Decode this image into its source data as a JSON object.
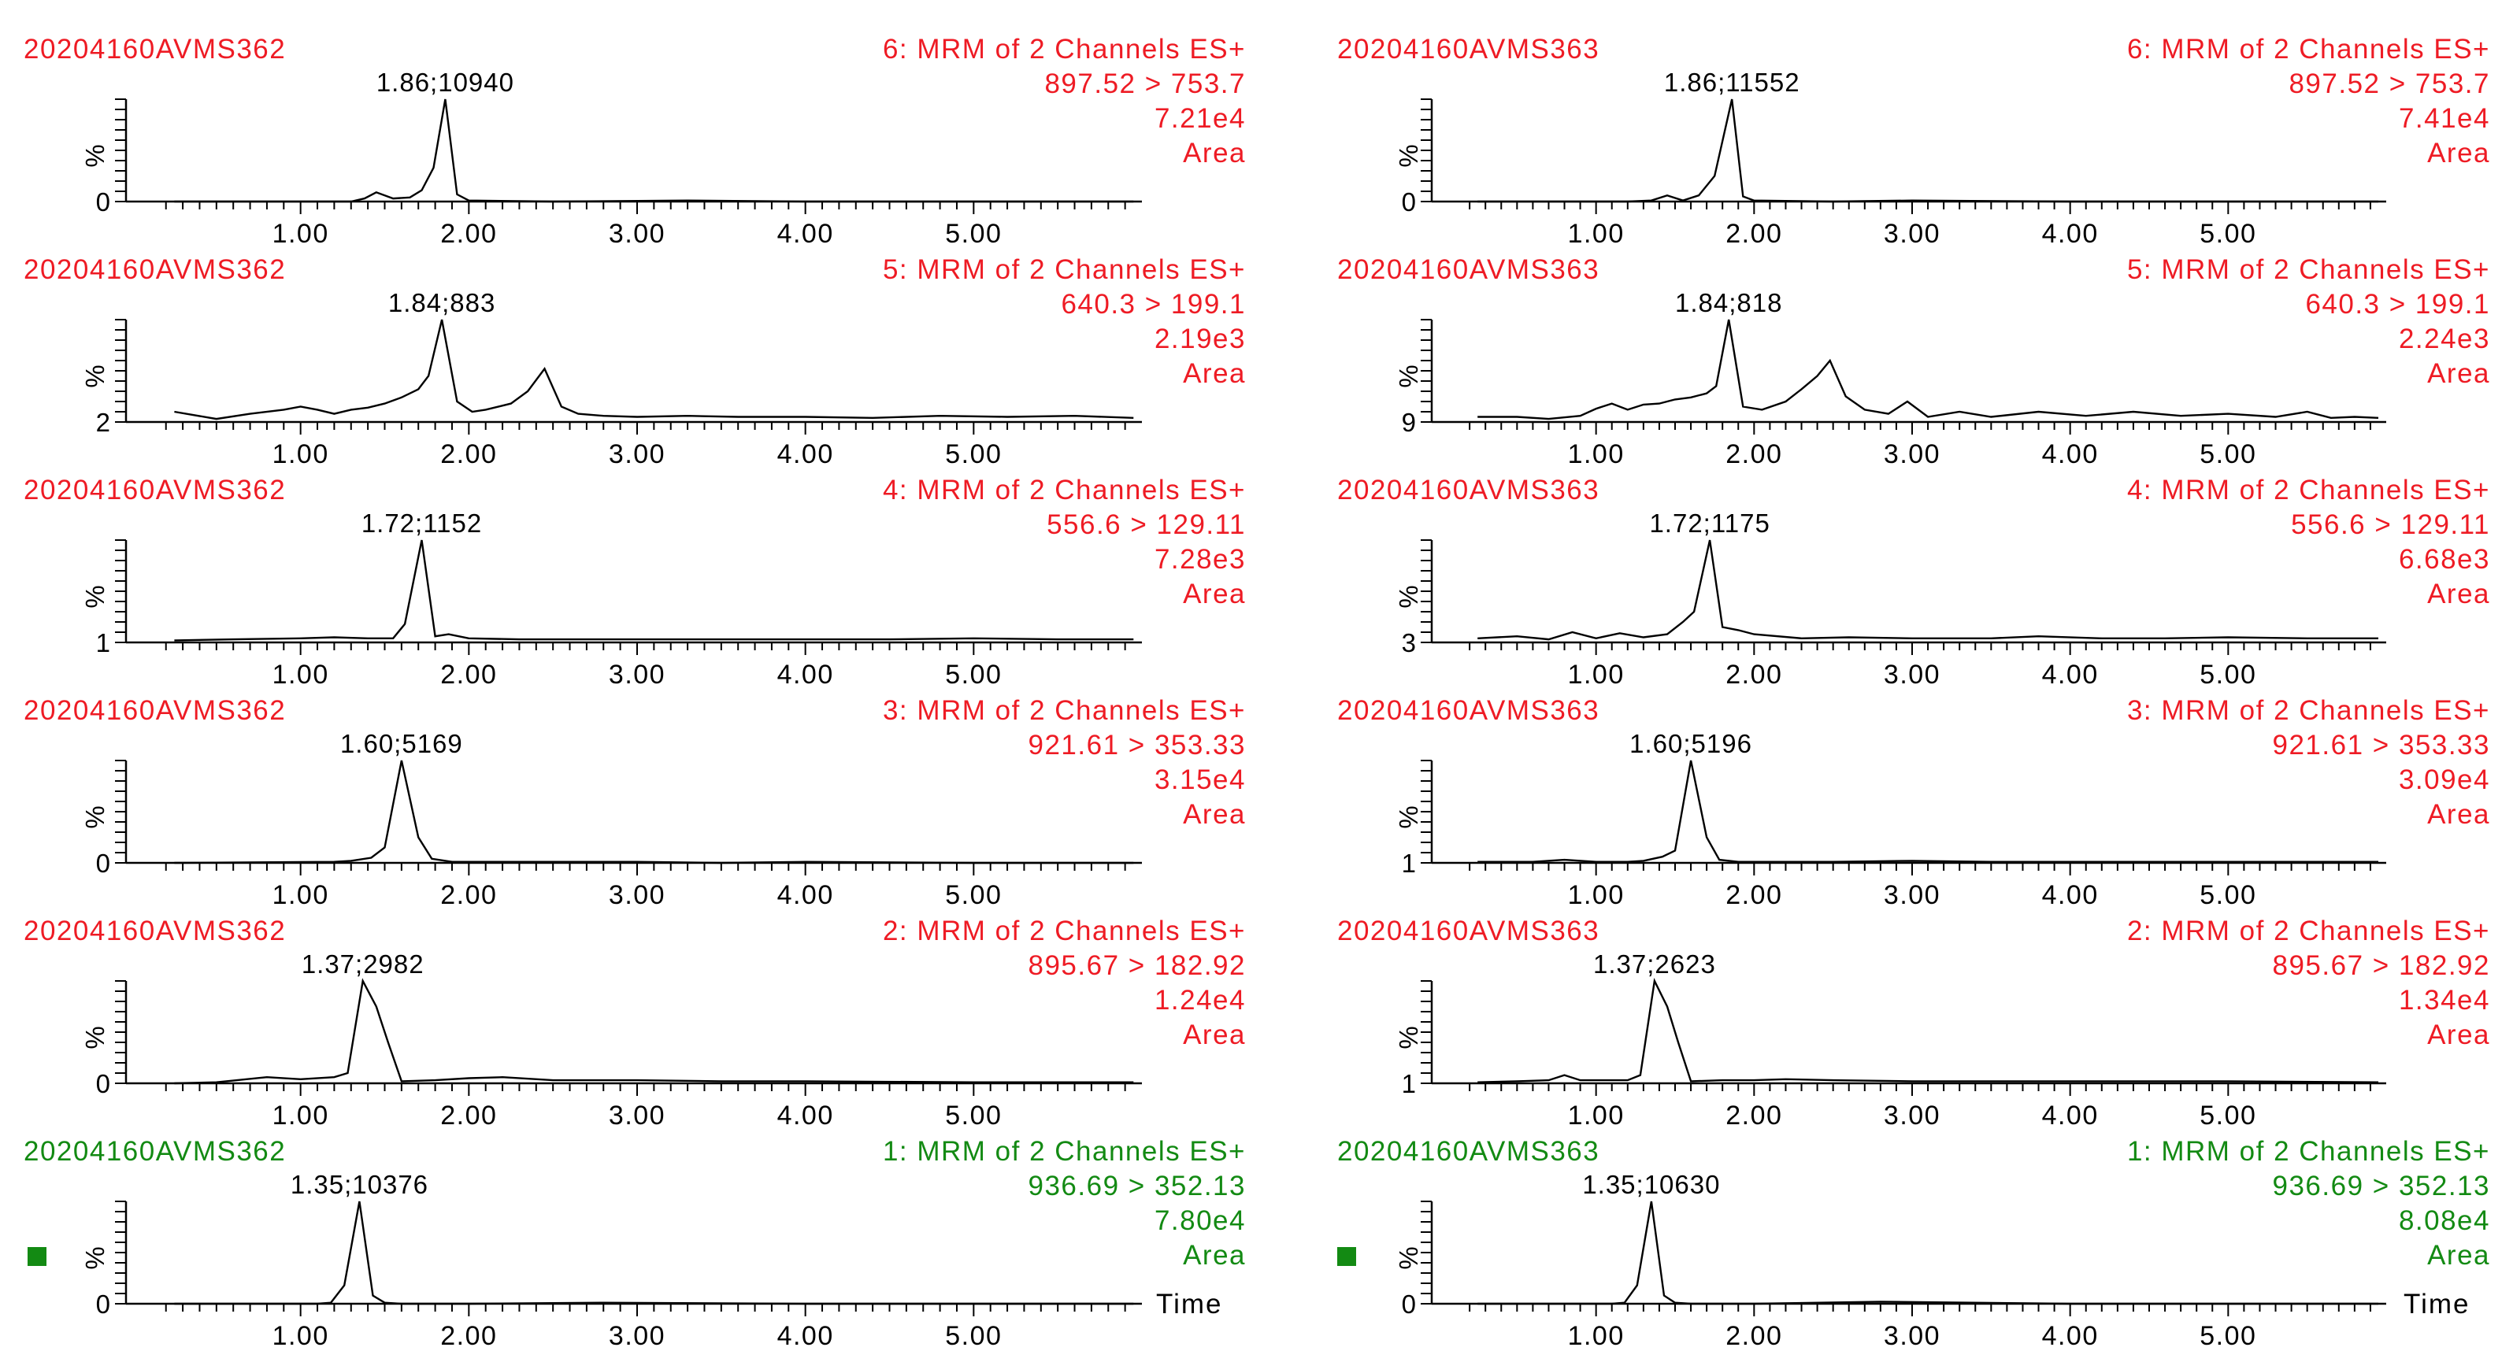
{
  "time_label": "Time",
  "pct_label": "%",
  "colors": {
    "red": "#ee1b24",
    "green": "#138a13",
    "text": "#000000",
    "trace": "#000000"
  },
  "chart_data": [
    {
      "type": "line",
      "column": "left",
      "sample": "20204160AVMS362",
      "function": "6: MRM of 2 Channels ES+",
      "transition": "897.52 > 753.7",
      "scale": "7.21e4",
      "mode": "Area",
      "peak_label": "1.86;10940",
      "offset": "0",
      "color": "red",
      "xlim": [
        0.0,
        6.0
      ],
      "xticks": [
        "1.00",
        "2.00",
        "3.00",
        "4.00",
        "5.00"
      ],
      "ylim": [
        0,
        100
      ],
      "x": [
        0.25,
        1.2,
        1.3,
        1.38,
        1.45,
        1.55,
        1.65,
        1.72,
        1.79,
        1.86,
        1.93,
        2.0,
        2.5,
        3.3,
        4.0,
        5.0,
        5.95
      ],
      "y": [
        0,
        0,
        0,
        3,
        9,
        3,
        4,
        11,
        33,
        100,
        7,
        1,
        0,
        1,
        0,
        0,
        0
      ]
    },
    {
      "type": "line",
      "column": "left",
      "sample": "20204160AVMS362",
      "function": "5: MRM of 2 Channels ES+",
      "transition": "640.3 > 199.1",
      "scale": "2.19e3",
      "mode": "Area",
      "peak_label": "1.84;883",
      "offset": "2",
      "color": "red",
      "xlim": [
        0.0,
        6.0
      ],
      "xticks": [
        "1.00",
        "2.00",
        "3.00",
        "4.00",
        "5.00"
      ],
      "ylim": [
        0,
        100
      ],
      "x": [
        0.25,
        0.5,
        0.7,
        0.9,
        1.0,
        1.1,
        1.2,
        1.3,
        1.4,
        1.5,
        1.6,
        1.7,
        1.76,
        1.84,
        1.93,
        2.02,
        2.1,
        2.25,
        2.35,
        2.45,
        2.55,
        2.65,
        2.8,
        3.0,
        3.3,
        3.6,
        4.0,
        4.4,
        4.8,
        5.2,
        5.6,
        5.95
      ],
      "y": [
        10,
        3,
        8,
        12,
        15,
        12,
        8,
        12,
        14,
        18,
        24,
        32,
        45,
        100,
        20,
        10,
        12,
        18,
        30,
        52,
        15,
        8,
        6,
        5,
        6,
        5,
        5,
        4,
        6,
        5,
        6,
        4
      ]
    },
    {
      "type": "line",
      "column": "left",
      "sample": "20204160AVMS362",
      "function": "4: MRM of 2 Channels ES+",
      "transition": "556.6 > 129.11",
      "scale": "7.28e3",
      "mode": "Area",
      "peak_label": "1.72;1152",
      "offset": "1",
      "color": "red",
      "xlim": [
        0.0,
        6.0
      ],
      "xticks": [
        "1.00",
        "2.00",
        "3.00",
        "4.00",
        "5.00"
      ],
      "ylim": [
        0,
        100
      ],
      "x": [
        0.25,
        0.6,
        1.0,
        1.2,
        1.4,
        1.55,
        1.62,
        1.72,
        1.8,
        1.88,
        2.0,
        2.3,
        3.0,
        3.5,
        4.0,
        4.5,
        5.0,
        5.5,
        5.95
      ],
      "y": [
        2,
        3,
        4,
        5,
        4,
        4,
        18,
        100,
        6,
        8,
        4,
        3,
        3,
        3,
        3,
        3,
        4,
        3,
        3
      ]
    },
    {
      "type": "line",
      "column": "left",
      "sample": "20204160AVMS362",
      "function": "3: MRM of 2 Channels ES+",
      "transition": "921.61 > 353.33",
      "scale": "3.15e4",
      "mode": "Area",
      "peak_label": "1.60;5169",
      "offset": "0",
      "color": "red",
      "xlim": [
        0.0,
        6.0
      ],
      "xticks": [
        "1.00",
        "2.00",
        "3.00",
        "4.00",
        "5.00"
      ],
      "ylim": [
        0,
        100
      ],
      "x": [
        0.25,
        1.2,
        1.3,
        1.42,
        1.5,
        1.6,
        1.7,
        1.78,
        1.9,
        2.5,
        3.0,
        3.5,
        4.0,
        5.0,
        5.95
      ],
      "y": [
        0,
        1,
        2,
        5,
        15,
        100,
        25,
        4,
        1,
        1,
        1,
        0,
        1,
        0,
        0
      ]
    },
    {
      "type": "line",
      "column": "left",
      "sample": "20204160AVMS362",
      "function": "2: MRM of 2 Channels ES+",
      "transition": "895.67 > 182.92",
      "scale": "1.24e4",
      "mode": "Area",
      "peak_label": "1.37;2982",
      "offset": "0",
      "color": "red",
      "xlim": [
        0.0,
        6.0
      ],
      "xticks": [
        "1.00",
        "2.00",
        "3.00",
        "4.00",
        "5.00"
      ],
      "ylim": [
        0,
        100
      ],
      "x": [
        0.25,
        0.5,
        0.8,
        1.0,
        1.2,
        1.28,
        1.37,
        1.45,
        1.52,
        1.6,
        1.8,
        2.0,
        2.2,
        2.5,
        3.0,
        3.5,
        4.0,
        5.0,
        5.95
      ],
      "y": [
        0,
        1,
        6,
        4,
        6,
        10,
        100,
        75,
        40,
        2,
        3,
        5,
        6,
        3,
        3,
        2,
        2,
        1,
        1
      ]
    },
    {
      "type": "line",
      "column": "left",
      "sample": "20204160AVMS362",
      "function": "1: MRM of 2 Channels ES+",
      "transition": "936.69 > 352.13",
      "scale": "7.80e4",
      "mode": "Area",
      "peak_label": "1.35;10376",
      "offset": "0",
      "color": "green",
      "xlim": [
        0.0,
        6.0
      ],
      "xticks": [
        "1.00",
        "2.00",
        "3.00",
        "4.00",
        "5.00"
      ],
      "ylim": [
        0,
        100
      ],
      "x": [
        0.25,
        1.1,
        1.18,
        1.26,
        1.35,
        1.43,
        1.5,
        1.6,
        2.0,
        2.8,
        4.0,
        5.95
      ],
      "y": [
        0,
        0,
        1,
        18,
        100,
        8,
        1,
        0,
        0,
        1,
        0,
        0
      ]
    },
    {
      "type": "line",
      "column": "right",
      "sample": "20204160AVMS363",
      "function": "6: MRM of 2 Channels ES+",
      "transition": "897.52 > 753.7",
      "scale": "7.41e4",
      "mode": "Area",
      "peak_label": "1.86;11552",
      "offset": "0",
      "color": "red",
      "xlim": [
        0.0,
        6.0
      ],
      "xticks": [
        "1.00",
        "2.00",
        "3.00",
        "4.00",
        "5.00"
      ],
      "ylim": [
        0,
        100
      ],
      "x": [
        0.25,
        1.2,
        1.35,
        1.45,
        1.55,
        1.65,
        1.75,
        1.86,
        1.93,
        2.0,
        2.5,
        3.0,
        4.0,
        5.0,
        5.95
      ],
      "y": [
        0,
        0,
        1,
        6,
        1,
        6,
        25,
        100,
        5,
        1,
        0,
        1,
        0,
        0,
        0
      ]
    },
    {
      "type": "line",
      "column": "right",
      "sample": "20204160AVMS363",
      "function": "5: MRM of 2 Channels ES+",
      "transition": "640.3 > 199.1",
      "scale": "2.24e3",
      "mode": "Area",
      "peak_label": "1.84;818",
      "offset": "9",
      "color": "red",
      "xlim": [
        0.0,
        6.0
      ],
      "xticks": [
        "1.00",
        "2.00",
        "3.00",
        "4.00",
        "5.00"
      ],
      "ylim": [
        0,
        100
      ],
      "x": [
        0.25,
        0.5,
        0.7,
        0.9,
        1.0,
        1.1,
        1.2,
        1.3,
        1.4,
        1.5,
        1.6,
        1.7,
        1.76,
        1.84,
        1.93,
        2.05,
        2.2,
        2.3,
        2.4,
        2.48,
        2.58,
        2.7,
        2.85,
        2.97,
        3.1,
        3.3,
        3.5,
        3.8,
        4.1,
        4.4,
        4.7,
        5.0,
        5.3,
        5.5,
        5.65,
        5.8,
        5.95
      ],
      "y": [
        5,
        5,
        3,
        6,
        13,
        18,
        12,
        17,
        18,
        22,
        24,
        28,
        35,
        100,
        15,
        12,
        20,
        32,
        45,
        60,
        25,
        12,
        8,
        20,
        5,
        10,
        5,
        10,
        6,
        10,
        6,
        8,
        5,
        10,
        4,
        5,
        4
      ]
    },
    {
      "type": "line",
      "column": "right",
      "sample": "20204160AVMS363",
      "function": "4: MRM of 2 Channels ES+",
      "transition": "556.6 > 129.11",
      "scale": "6.68e3",
      "mode": "Area",
      "peak_label": "1.72;1175",
      "offset": "3",
      "color": "red",
      "xlim": [
        0.0,
        6.0
      ],
      "xticks": [
        "1.00",
        "2.00",
        "3.00",
        "4.00",
        "5.00"
      ],
      "ylim": [
        0,
        100
      ],
      "x": [
        0.25,
        0.5,
        0.7,
        0.85,
        1.0,
        1.15,
        1.3,
        1.45,
        1.55,
        1.62,
        1.72,
        1.8,
        1.9,
        2.0,
        2.3,
        2.6,
        3.0,
        3.5,
        3.8,
        4.2,
        4.6,
        5.0,
        5.5,
        5.95
      ],
      "y": [
        4,
        6,
        3,
        10,
        4,
        9,
        5,
        8,
        20,
        30,
        100,
        15,
        12,
        8,
        4,
        5,
        4,
        4,
        6,
        4,
        4,
        5,
        4,
        4
      ]
    },
    {
      "type": "line",
      "column": "right",
      "sample": "20204160AVMS363",
      "function": "3: MRM of 2 Channels ES+",
      "transition": "921.61 > 353.33",
      "scale": "3.09e4",
      "mode": "Area",
      "peak_label": "1.60;5196",
      "offset": "1",
      "color": "red",
      "xlim": [
        0.0,
        6.0
      ],
      "xticks": [
        "1.00",
        "2.00",
        "3.00",
        "4.00",
        "5.00"
      ],
      "ylim": [
        0,
        100
      ],
      "x": [
        0.25,
        0.6,
        0.8,
        1.0,
        1.2,
        1.3,
        1.42,
        1.5,
        1.6,
        1.7,
        1.78,
        1.9,
        2.5,
        3.0,
        3.5,
        4.0,
        5.0,
        5.95
      ],
      "y": [
        1,
        1,
        3,
        1,
        1,
        2,
        6,
        12,
        100,
        25,
        3,
        1,
        1,
        2,
        1,
        1,
        1,
        1
      ]
    },
    {
      "type": "line",
      "column": "right",
      "sample": "20204160AVMS363",
      "function": "2: MRM of 2 Channels ES+",
      "transition": "895.67 > 182.92",
      "scale": "1.34e4",
      "mode": "Area",
      "peak_label": "1.37;2623",
      "offset": "1",
      "color": "red",
      "xlim": [
        0.0,
        6.0
      ],
      "xticks": [
        "1.00",
        "2.00",
        "3.00",
        "4.00",
        "5.00"
      ],
      "ylim": [
        0,
        100
      ],
      "x": [
        0.25,
        0.5,
        0.7,
        0.8,
        0.9,
        1.0,
        1.2,
        1.28,
        1.37,
        1.45,
        1.52,
        1.6,
        1.8,
        2.0,
        2.2,
        2.5,
        3.0,
        4.0,
        5.0,
        5.95
      ],
      "y": [
        1,
        2,
        3,
        8,
        3,
        3,
        3,
        8,
        100,
        75,
        40,
        2,
        3,
        3,
        4,
        3,
        2,
        2,
        2,
        1
      ]
    },
    {
      "type": "line",
      "column": "right",
      "sample": "20204160AVMS363",
      "function": "1: MRM of 2 Channels ES+",
      "transition": "936.69 > 352.13",
      "scale": "8.08e4",
      "mode": "Area",
      "peak_label": "1.35;10630",
      "offset": "0",
      "color": "green",
      "xlim": [
        0.0,
        6.0
      ],
      "xticks": [
        "1.00",
        "2.00",
        "3.00",
        "4.00",
        "5.00"
      ],
      "ylim": [
        0,
        100
      ],
      "x": [
        0.25,
        1.1,
        1.18,
        1.26,
        1.35,
        1.43,
        1.5,
        1.6,
        2.0,
        2.8,
        4.0,
        5.95
      ],
      "y": [
        0,
        0,
        1,
        18,
        100,
        8,
        1,
        0,
        0,
        2,
        0,
        0
      ]
    }
  ]
}
